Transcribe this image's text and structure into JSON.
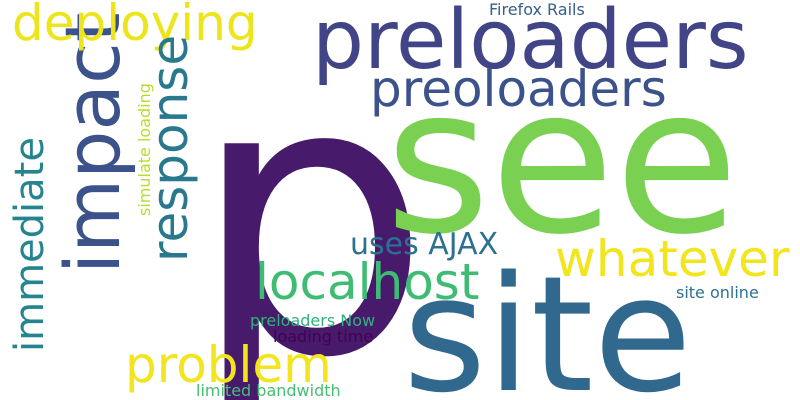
{
  "words": {
    "p": {
      "text": "p",
      "color": "#481a6c"
    },
    "see": {
      "text": "see",
      "color": "#7ad151"
    },
    "site": {
      "text": "site",
      "color": "#31688e"
    },
    "preloaders": {
      "text": "preloaders",
      "color": "#414487"
    },
    "impact": {
      "text": "impact",
      "color": "#3b528b"
    },
    "deploying": {
      "text": "deploying",
      "color": "#ece51b"
    },
    "preoloaders": {
      "text": "preoloaders",
      "color": "#3b528b"
    },
    "response": {
      "text": "response",
      "color": "#2a788e"
    },
    "immediate": {
      "text": "immediate",
      "color": "#25858e"
    },
    "whatever": {
      "text": "whatever",
      "color": "#f2e51d"
    },
    "localhost": {
      "text": "localhost",
      "color": "#3fbc73"
    },
    "problem": {
      "text": "problem",
      "color": "#f2e51d"
    },
    "uses_ajax": {
      "text": "uses AJAX",
      "color": "#2c728e"
    },
    "simulate_loading": {
      "text": "simulate loading",
      "color": "#b5de2b"
    },
    "firefox_rails": {
      "text": "Firefox Rails",
      "color": "#355f8d"
    },
    "preloaders_now": {
      "text": "preloaders Now",
      "color": "#2eb37c"
    },
    "loading_time": {
      "text": "loading time",
      "color": "#440154"
    },
    "site_online": {
      "text": "site online",
      "color": "#2c728e"
    },
    "limited_bandwidth": {
      "text": "limited bandwidth",
      "color": "#44bf70"
    }
  }
}
